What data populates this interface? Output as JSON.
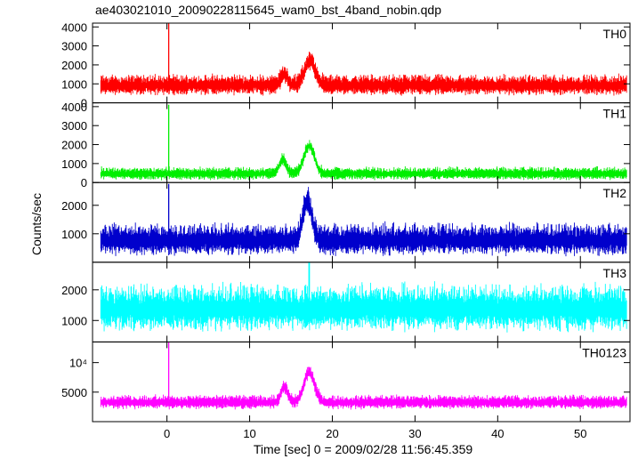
{
  "chart_data": {
    "type": "line",
    "title": "ae403021010_20090228115645_wam0_bst_4band_nobin.qdp",
    "xlabel": "Time [sec] 0 = 2009/02/28 11:56:45.359",
    "ylabel": "Counts/sec",
    "xlim": [
      -9,
      56
    ],
    "x_ticks": [
      0,
      10,
      20,
      30,
      40,
      50
    ],
    "x_tick_labels": [
      "0",
      "10",
      "20",
      "30",
      "40",
      "50"
    ],
    "panels": [
      {
        "name": "TH0",
        "color": "#ff0000",
        "ylim": [
          0,
          4200
        ],
        "y_ticks": [
          0,
          1000,
          2000,
          3000,
          4000
        ],
        "y_tick_labels": [
          "0",
          "1000",
          "2000",
          "3000",
          "4000"
        ],
        "baseline": 900,
        "noise": 320,
        "spike": {
          "x": 0.2,
          "value": 4200
        },
        "features": [
          {
            "x": 14.2,
            "width": 0.6,
            "value": 1500
          },
          {
            "x": 17.3,
            "width": 0.9,
            "value": 2200
          }
        ]
      },
      {
        "name": "TH1",
        "color": "#00ee00",
        "ylim": [
          0,
          4200
        ],
        "y_ticks": [
          0,
          1000,
          2000,
          3000,
          4000
        ],
        "y_tick_labels": [
          "0",
          "1000",
          "2000",
          "3000",
          "4000"
        ],
        "baseline": 450,
        "noise": 200,
        "spike": {
          "x": 0.2,
          "value": 4100
        },
        "features": [
          {
            "x": 14.0,
            "width": 0.6,
            "value": 1200
          },
          {
            "x": 17.2,
            "width": 0.9,
            "value": 1900
          }
        ]
      },
      {
        "name": "TH2",
        "color": "#0000cc",
        "ylim": [
          0,
          2800
        ],
        "y_ticks": [
          1000,
          2000
        ],
        "y_tick_labels": [
          "1000",
          "2000"
        ],
        "baseline": 750,
        "noise": 330,
        "spike": {
          "x": 0.2,
          "value": 2750
        },
        "features": [
          {
            "x": 17.0,
            "width": 0.8,
            "value": 2100
          }
        ]
      },
      {
        "name": "TH3",
        "color": "#00ffff",
        "ylim": [
          300,
          2900
        ],
        "y_ticks": [
          1000,
          2000
        ],
        "y_tick_labels": [
          "1000",
          "2000"
        ],
        "baseline": 1350,
        "noise": 450,
        "spike": {
          "x": 17.2,
          "value": 2900
        },
        "features": []
      },
      {
        "name": "TH0123",
        "color": "#ff00ff",
        "ylim": [
          0,
          13500
        ],
        "y_ticks": [
          5000,
          10000
        ],
        "y_tick_labels": [
          "5000",
          "10⁴"
        ],
        "baseline": 3200,
        "noise": 700,
        "spike": {
          "x": 0.2,
          "value": 13500
        },
        "features": [
          {
            "x": 14.2,
            "width": 0.6,
            "value": 5800
          },
          {
            "x": 17.2,
            "width": 0.9,
            "value": 8300
          }
        ]
      }
    ]
  }
}
